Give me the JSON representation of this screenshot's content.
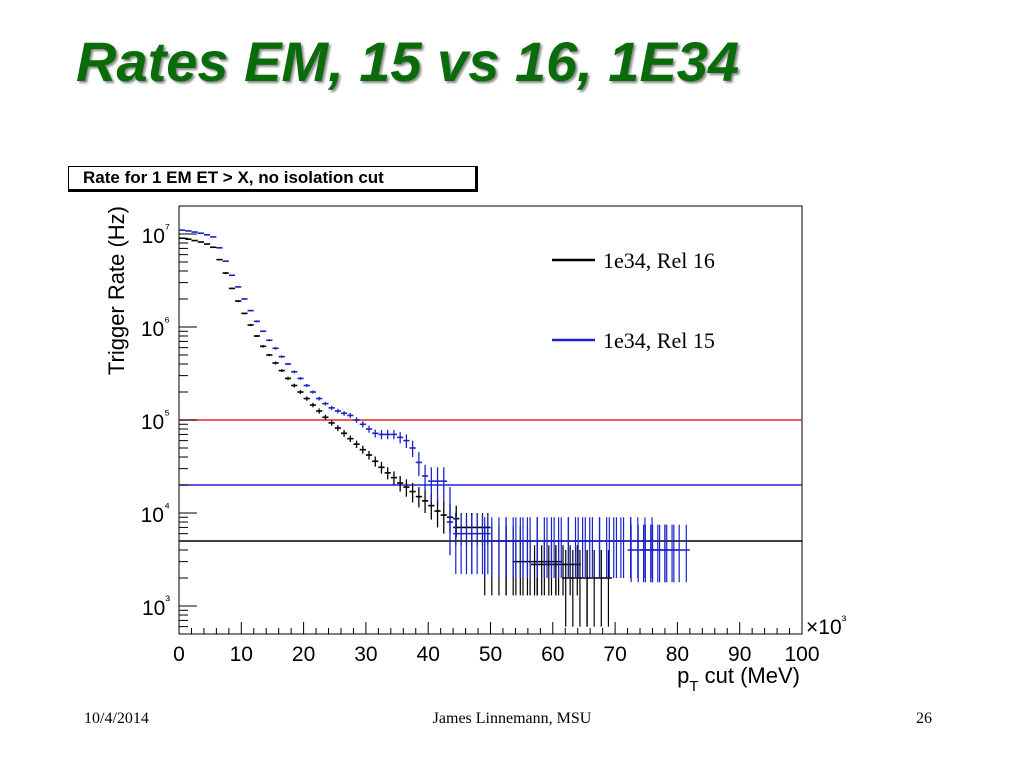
{
  "slide": {
    "title": "Rates EM, 15 vs 16, 1E34",
    "footer_date": "10/4/2014",
    "footer_author": "James Linnemann, MSU",
    "footer_page": "26"
  },
  "chart_data": {
    "type": "scatter",
    "title": "Rate for 1 EM ET > X, no isolation cut",
    "xlabel": "p_T cut (MeV)",
    "ylabel": "Trigger Rate (Hz)",
    "xlim": [
      0,
      100
    ],
    "x_multiplier_label": "×10³",
    "yscale": "log",
    "ylim": [
      500,
      20000000
    ],
    "x_ticks": [
      0,
      10,
      20,
      30,
      40,
      50,
      60,
      70,
      80,
      90,
      100
    ],
    "y_ticks": [
      1000,
      10000,
      100000,
      1000000,
      10000000
    ],
    "y_tick_labels": [
      "10³",
      "10⁴",
      "10⁵",
      "10⁶",
      "10⁷"
    ],
    "grid": false,
    "legend_position": "top-right",
    "bin_width": 1,
    "series": [
      {
        "name": "1e34, Rel 16",
        "color": "#000000",
        "x": [
          0.5,
          1.5,
          2.5,
          3.5,
          4.5,
          5.5,
          6.5,
          7.5,
          8.5,
          9.5,
          10.5,
          11.5,
          12.5,
          13.5,
          14.5,
          15.5,
          16.5,
          17.5,
          18.5,
          19.5,
          20.5,
          21.5,
          22.5,
          23.5,
          24.5,
          25.5,
          26.5,
          27.5,
          28.5,
          29.5,
          30.5,
          31.5,
          32.5,
          33.5,
          34.5,
          35.5,
          36.5,
          37.5,
          38.5,
          39.5,
          40.5,
          41.5,
          42.5,
          43.5,
          44.5,
          47,
          52.5,
          57.5,
          60.5,
          65.5
        ],
        "y": [
          9000000,
          8800000,
          8500000,
          8200000,
          7800000,
          7200000,
          5300000,
          3800000,
          2600000,
          1900000,
          1400000,
          1050000,
          800000,
          620000,
          500000,
          410000,
          340000,
          280000,
          235000,
          200000,
          170000,
          145000,
          125000,
          107000,
          93000,
          82000,
          72000,
          63000,
          55000,
          48000,
          42000,
          36000,
          31000,
          27000,
          24000,
          21000,
          19000,
          17000,
          15000,
          13500,
          12000,
          10500,
          9500,
          9000,
          8700,
          7000,
          5000,
          3000,
          2800,
          2000
        ],
        "err_hi": [
          9100000,
          8900000,
          8600000,
          8300000,
          7900000,
          7300000,
          5400000,
          3900000,
          2650000,
          1950000,
          1430000,
          1080000,
          820000,
          640000,
          515000,
          425000,
          352000,
          292000,
          246000,
          210000,
          179000,
          153000,
          133000,
          114000,
          99000,
          88000,
          78000,
          68000,
          60000,
          53000,
          46500,
          40500,
          35500,
          31000,
          28000,
          25000,
          23000,
          21000,
          19000,
          17500,
          16000,
          14000,
          13500,
          12500,
          12000,
          10000,
          7200,
          5000,
          4500,
          4000
        ],
        "err_lo": [
          8900000,
          8700000,
          8400000,
          8100000,
          7700000,
          7100000,
          5200000,
          3700000,
          2550000,
          1850000,
          1370000,
          1020000,
          780000,
          600000,
          485000,
          395000,
          328000,
          268000,
          224000,
          190000,
          161000,
          137000,
          117000,
          100000,
          87000,
          76000,
          66000,
          58000,
          50000,
          43500,
          37500,
          31500,
          26500,
          23000,
          20000,
          17000,
          15000,
          13000,
          11500,
          10000,
          8500,
          7000,
          6000,
          6000,
          5500,
          4500,
          1300,
          1300,
          1300,
          600
        ]
      },
      {
        "name": "1e34, Rel 15",
        "color": "#1a22cc",
        "x": [
          0.5,
          1.5,
          2.5,
          3.5,
          4.5,
          5.5,
          6.5,
          7.5,
          8.5,
          9.5,
          10.5,
          11.5,
          12.5,
          13.5,
          14.5,
          15.5,
          16.5,
          17.5,
          18.5,
          19.5,
          20.5,
          21.5,
          22.5,
          23.5,
          24.5,
          25.5,
          26.5,
          27.5,
          28.5,
          29.5,
          30.5,
          31.5,
          32.5,
          33.5,
          34.5,
          35.5,
          36.5,
          37.5,
          38.5,
          39.5,
          40.5,
          41.5,
          42.5,
          43.5,
          47,
          52.5,
          57.5,
          62.5,
          67.5,
          72.5,
          76,
          78
        ],
        "y": [
          11000000,
          10800000,
          10500000,
          10200000,
          9800000,
          9300000,
          7100000,
          5100000,
          3600000,
          2700000,
          2000000,
          1500000,
          1150000,
          900000,
          720000,
          590000,
          480000,
          400000,
          330000,
          280000,
          235000,
          200000,
          170000,
          150000,
          135000,
          125000,
          118000,
          112000,
          100000,
          90000,
          80000,
          72000,
          70000,
          70000,
          70000,
          65000,
          60000,
          50000,
          35000,
          25000,
          22000,
          22000,
          22000,
          8000,
          6000,
          5000,
          5000,
          5000,
          5000,
          5000,
          4000,
          4000
        ],
        "err_hi": [
          11100000,
          10900000,
          10600000,
          10300000,
          9900000,
          9400000,
          7200000,
          5200000,
          3650000,
          2750000,
          2040000,
          1530000,
          1180000,
          920000,
          740000,
          610000,
          495000,
          412000,
          342000,
          290000,
          244000,
          208000,
          178000,
          157000,
          142000,
          132000,
          125000,
          119000,
          107000,
          97000,
          87000,
          79000,
          78000,
          78000,
          78000,
          74000,
          70000,
          60000,
          45000,
          33000,
          31000,
          31000,
          31000,
          19000,
          9500,
          9000,
          9000,
          9000,
          9000,
          9000,
          7500,
          7500
        ],
        "err_lo": [
          10900000,
          10700000,
          10400000,
          10100000,
          9700000,
          9200000,
          7000000,
          5000000,
          3550000,
          2650000,
          1960000,
          1470000,
          1120000,
          880000,
          700000,
          570000,
          465000,
          388000,
          318000,
          270000,
          226000,
          192000,
          162000,
          143000,
          128000,
          118000,
          111000,
          105000,
          93000,
          83000,
          73000,
          65000,
          62000,
          62000,
          62000,
          56000,
          50000,
          40000,
          25000,
          17000,
          13000,
          13000,
          13000,
          3500,
          2200,
          2000,
          2000,
          2000,
          2000,
          2000,
          1800,
          1800
        ]
      }
    ],
    "threshold_lines": [
      {
        "name": "red-threshold",
        "y": 100000,
        "color": "#ee2222"
      },
      {
        "name": "blue-threshold",
        "y": 20000,
        "color": "#2222dd"
      },
      {
        "name": "black-threshold",
        "y": 5000,
        "color": "#000000"
      }
    ]
  }
}
